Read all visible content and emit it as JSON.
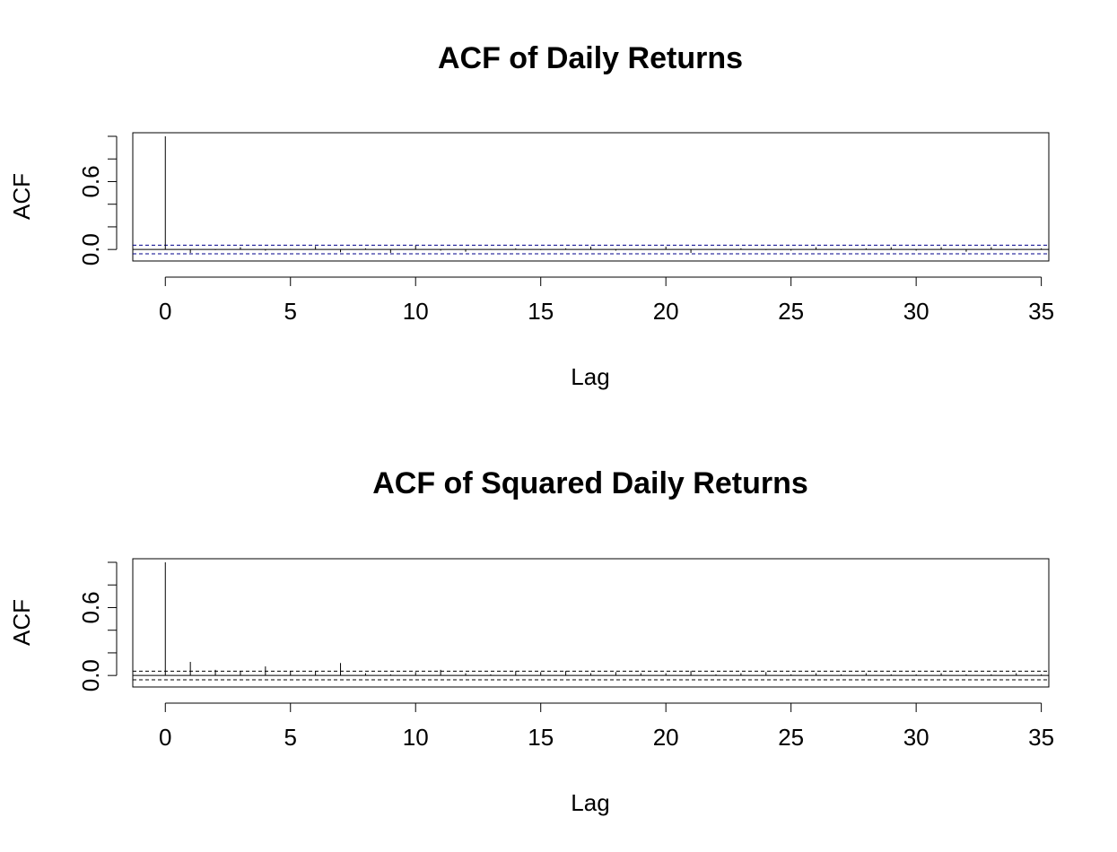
{
  "chart_data": [
    {
      "type": "bar",
      "title": "ACF of Daily Returns",
      "xlabel": "Lag",
      "ylabel": "ACF",
      "xlim": [
        -1.3,
        35.3
      ],
      "ylim": [
        -0.07,
        1.0
      ],
      "xticks": [
        "0",
        "5",
        "10",
        "15",
        "20",
        "25",
        "30",
        "35"
      ],
      "yticks_major": [
        "0.0",
        "0.6"
      ],
      "yticks_minor": [
        0.2,
        0.4,
        0.8,
        1.0
      ],
      "grid": false,
      "lags": [
        0,
        1,
        2,
        3,
        4,
        5,
        6,
        7,
        8,
        9,
        10,
        11,
        12,
        13,
        14,
        15,
        16,
        17,
        18,
        19,
        20,
        21,
        22,
        23,
        24,
        25,
        26,
        27,
        28,
        29,
        30,
        31,
        32,
        33,
        34,
        35
      ],
      "values": [
        1.0,
        -0.03,
        -0.005,
        0.02,
        -0.01,
        0.005,
        0.03,
        -0.025,
        0.01,
        -0.03,
        0.035,
        -0.01,
        -0.02,
        0.005,
        0.01,
        -0.005,
        0.01,
        0.025,
        -0.01,
        0.005,
        0.025,
        -0.03,
        0.005,
        0.01,
        -0.005,
        -0.01,
        0.02,
        -0.005,
        0.01,
        0.02,
        -0.01,
        0.02,
        -0.02,
        0.02,
        -0.005,
        0.01
      ],
      "confidence_band": [
        -0.038,
        0.038
      ],
      "confidence_color": "#00008B",
      "line_color": "#000000"
    },
    {
      "type": "bar",
      "title": "ACF of Squared Daily Returns",
      "xlabel": "Lag",
      "ylabel": "ACF",
      "xlim": [
        -1.3,
        35.3
      ],
      "ylim": [
        -0.07,
        1.0
      ],
      "xticks": [
        "0",
        "5",
        "10",
        "15",
        "20",
        "25",
        "30",
        "35"
      ],
      "yticks_major": [
        "0.0",
        "0.6"
      ],
      "yticks_minor": [
        0.2,
        0.4,
        0.8,
        1.0
      ],
      "grid": false,
      "lags": [
        0,
        1,
        2,
        3,
        4,
        5,
        6,
        7,
        8,
        9,
        10,
        11,
        12,
        13,
        14,
        15,
        16,
        17,
        18,
        19,
        20,
        21,
        22,
        23,
        24,
        25,
        26,
        27,
        28,
        29,
        30,
        31,
        32,
        33,
        34,
        35
      ],
      "values": [
        1.0,
        0.12,
        0.05,
        0.04,
        0.08,
        0.04,
        0.04,
        0.11,
        0.02,
        0.01,
        0.03,
        0.05,
        0.02,
        0.01,
        0.04,
        0.03,
        0.04,
        0.02,
        0.03,
        0.02,
        0.02,
        0.04,
        0.01,
        0.02,
        0.03,
        0.01,
        0.02,
        0.01,
        0.02,
        0.01,
        0.01,
        0.02,
        0.01,
        0.01,
        0.02,
        0.01
      ],
      "confidence_band": [
        -0.038,
        0.038
      ],
      "confidence_color": "#000000",
      "line_color": "#000000"
    }
  ]
}
